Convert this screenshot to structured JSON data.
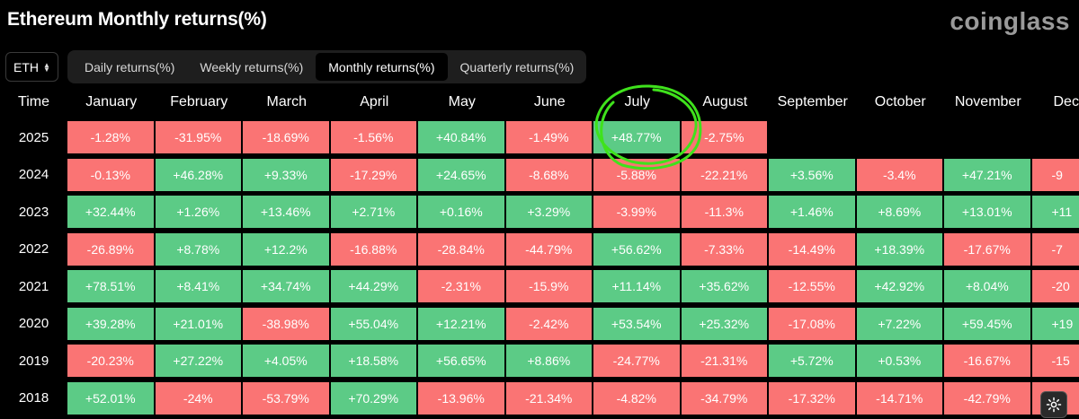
{
  "title": "Ethereum Monthly returns(%)",
  "brand": "coinglass",
  "asset_select": {
    "value": "ETH"
  },
  "tabs": [
    {
      "label": "Daily returns(%)",
      "active": false
    },
    {
      "label": "Weekly returns(%)",
      "active": false
    },
    {
      "label": "Monthly returns(%)",
      "active": true
    },
    {
      "label": "Quarterly returns(%)",
      "active": false
    }
  ],
  "table": {
    "time_header": "Time",
    "months": [
      "January",
      "February",
      "March",
      "April",
      "May",
      "June",
      "July",
      "August",
      "September",
      "October",
      "November",
      "December"
    ],
    "rows": [
      {
        "year": "2025",
        "values": [
          "-1.28%",
          "-31.95%",
          "-18.69%",
          "-1.56%",
          "+40.84%",
          "-1.49%",
          "+48.77%",
          "-2.75%"
        ]
      },
      {
        "year": "2024",
        "values": [
          "-0.13%",
          "+46.28%",
          "+9.33%",
          "-17.29%",
          "+24.65%",
          "-8.68%",
          "-5.88%",
          "-22.21%",
          "+3.56%",
          "-3.4%",
          "+47.21%",
          "-9"
        ]
      },
      {
        "year": "2023",
        "values": [
          "+32.44%",
          "+1.26%",
          "+13.46%",
          "+2.71%",
          "+0.16%",
          "+3.29%",
          "-3.99%",
          "-11.3%",
          "+1.46%",
          "+8.69%",
          "+13.01%",
          "+11"
        ]
      },
      {
        "year": "2022",
        "values": [
          "-26.89%",
          "+8.78%",
          "+12.2%",
          "-16.88%",
          "-28.84%",
          "-44.79%",
          "+56.62%",
          "-7.33%",
          "-14.49%",
          "+18.39%",
          "-17.67%",
          "-7"
        ]
      },
      {
        "year": "2021",
        "values": [
          "+78.51%",
          "+8.41%",
          "+34.74%",
          "+44.29%",
          "-2.31%",
          "-15.9%",
          "+11.14%",
          "+35.62%",
          "-12.55%",
          "+42.92%",
          "+8.04%",
          "-20"
        ]
      },
      {
        "year": "2020",
        "values": [
          "+39.28%",
          "+21.01%",
          "-38.98%",
          "+55.04%",
          "+12.21%",
          "-2.42%",
          "+53.54%",
          "+25.32%",
          "-17.08%",
          "+7.22%",
          "+59.45%",
          "+19"
        ]
      },
      {
        "year": "2019",
        "values": [
          "-20.23%",
          "+27.22%",
          "+4.05%",
          "+18.58%",
          "+56.65%",
          "+8.86%",
          "-24.77%",
          "-21.31%",
          "+5.72%",
          "+0.53%",
          "-16.67%",
          "-15"
        ]
      },
      {
        "year": "2018",
        "values": [
          "+52.01%",
          "-24%",
          "-53.79%",
          "+70.29%",
          "-13.96%",
          "-21.34%",
          "-4.82%",
          "-34.79%",
          "-17.32%",
          "-14.71%",
          "-42.79%",
          "-4"
        ]
      }
    ]
  },
  "annotation": {
    "highlight": "July 2025",
    "color": "#3fe21c"
  },
  "colors": {
    "positive": "#5ccb86",
    "negative": "#fa7474",
    "background": "#000000"
  }
}
